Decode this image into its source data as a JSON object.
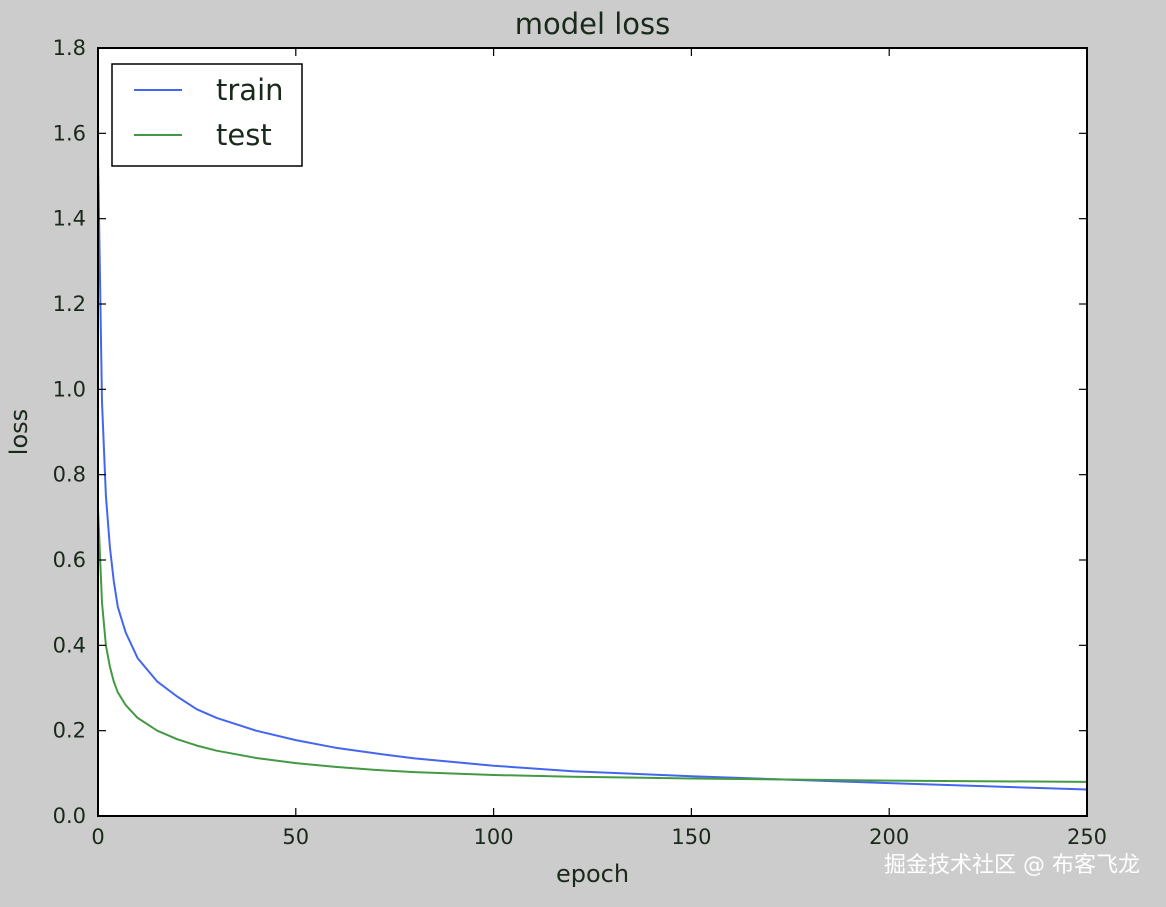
{
  "page_bg": "#cccccc",
  "chart_data": {
    "type": "line",
    "title": "model loss",
    "xlabel": "epoch",
    "ylabel": "loss",
    "xlim": [
      0,
      250
    ],
    "ylim": [
      0.0,
      1.8
    ],
    "xticks": [
      "0",
      "50",
      "100",
      "150",
      "200",
      "250"
    ],
    "yticks": [
      "0.0",
      "0.2",
      "0.4",
      "0.6",
      "0.8",
      "1.0",
      "1.2",
      "1.4",
      "1.6",
      "1.8"
    ],
    "grid": false,
    "legend_position": "top-left",
    "series": [
      {
        "name": "train",
        "color": "#4466ee",
        "x": [
          0,
          1,
          2,
          3,
          4,
          5,
          7,
          10,
          15,
          20,
          25,
          30,
          40,
          50,
          60,
          70,
          80,
          100,
          120,
          150,
          200,
          250
        ],
        "y": [
          1.55,
          0.97,
          0.75,
          0.63,
          0.55,
          0.49,
          0.43,
          0.37,
          0.315,
          0.28,
          0.25,
          0.23,
          0.2,
          0.178,
          0.16,
          0.147,
          0.135,
          0.118,
          0.105,
          0.093,
          0.077,
          0.062
        ]
      },
      {
        "name": "test",
        "color": "#449944",
        "x": [
          0,
          1,
          2,
          3,
          4,
          5,
          7,
          10,
          15,
          20,
          25,
          30,
          40,
          50,
          60,
          70,
          80,
          100,
          120,
          150,
          200,
          250
        ],
        "y": [
          0.72,
          0.5,
          0.4,
          0.35,
          0.315,
          0.29,
          0.26,
          0.23,
          0.2,
          0.18,
          0.165,
          0.153,
          0.136,
          0.124,
          0.115,
          0.108,
          0.103,
          0.096,
          0.092,
          0.088,
          0.083,
          0.08
        ]
      }
    ]
  },
  "watermark": "掘金技术社区 @ 布客飞龙"
}
